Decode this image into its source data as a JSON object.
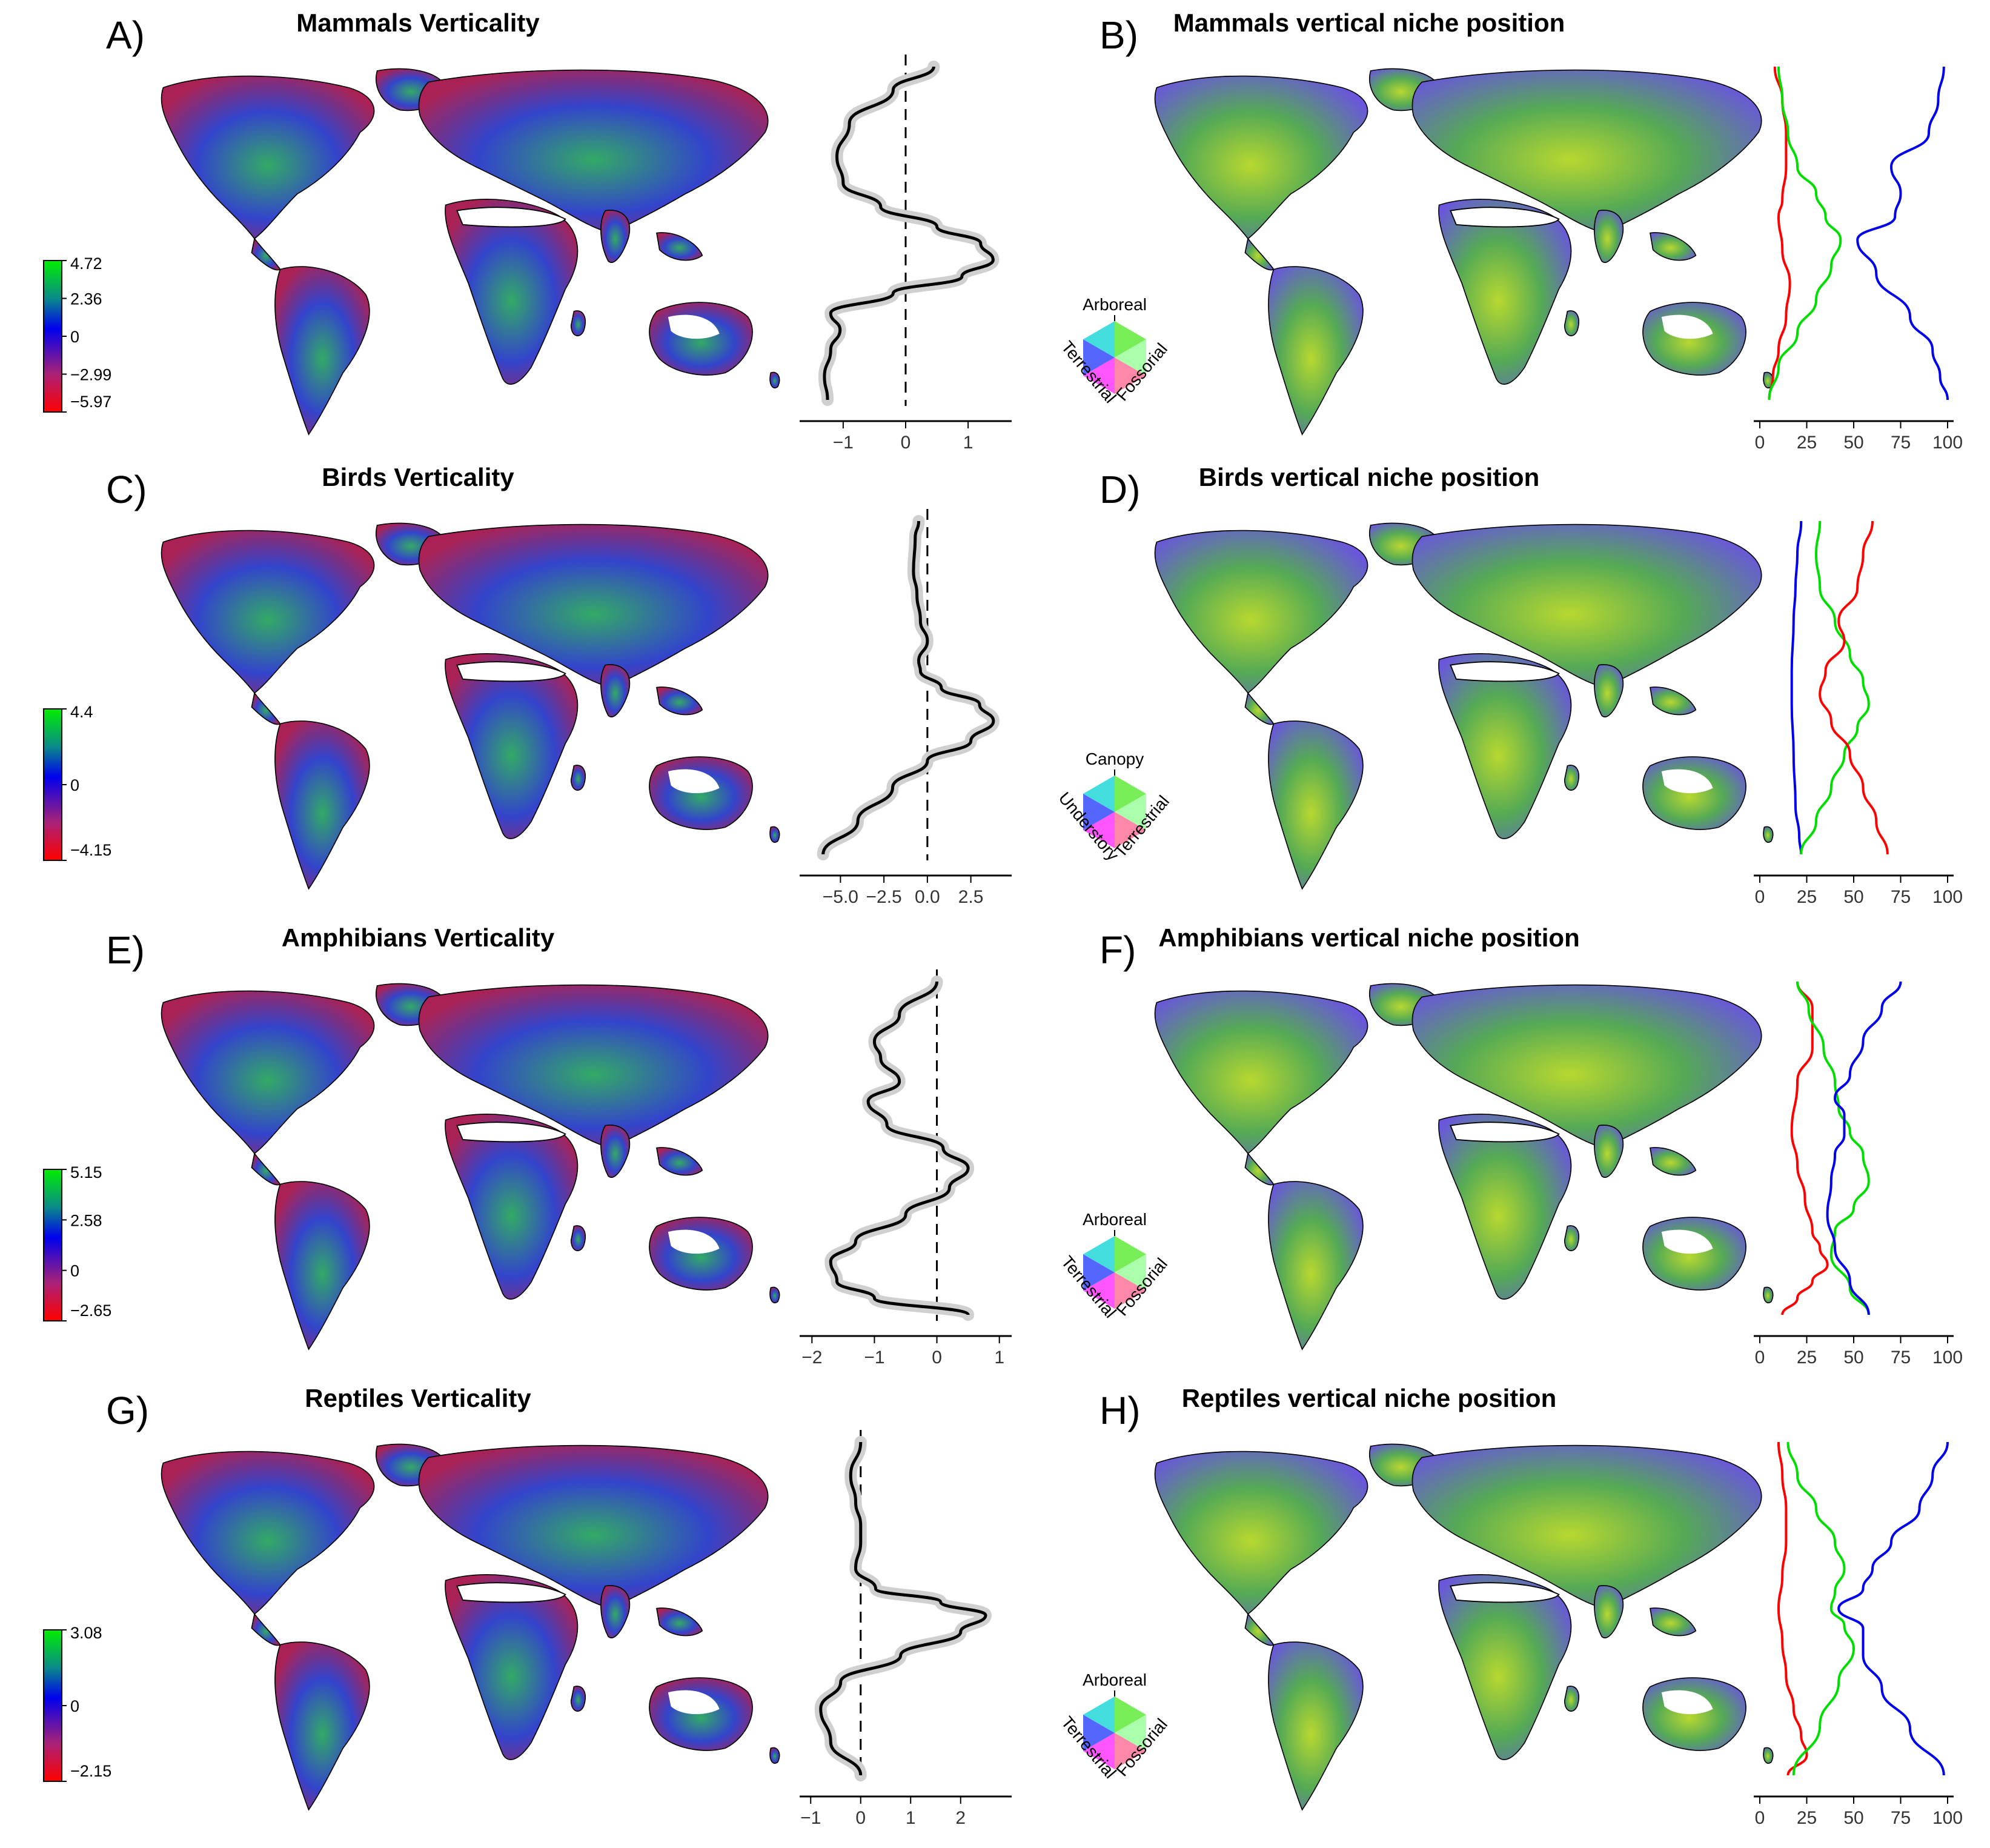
{
  "colors": {
    "red": "#ff0000",
    "green": "#00dd00",
    "blue": "#0000ee",
    "grey": "#d0d0d0",
    "black": "#000000"
  },
  "panels": [
    {
      "label": "A)",
      "title": "Mammals Verticality",
      "kind": "map-verticality",
      "colorbar": {
        "ticks": [
          "4.72",
          "2.36",
          "0",
          "−2.99",
          "−5.97"
        ]
      }
    },
    {
      "label": "B)",
      "title": "Mammals vertical niche position",
      "kind": "map-ternary",
      "ternary": {
        "top": "Arboreal",
        "left": "Terrestrial",
        "right": "Fossorial"
      }
    },
    {
      "label": "C)",
      "title": "Birds Verticality",
      "kind": "map-verticality",
      "colorbar": {
        "ticks": [
          "4.4",
          "0",
          "−4.15"
        ]
      }
    },
    {
      "label": "D)",
      "title": "Birds vertical niche position",
      "kind": "map-ternary",
      "ternary": {
        "top": "Canopy",
        "left": "Understory",
        "right": "Terrestrial"
      }
    },
    {
      "label": "E)",
      "title": "Amphibians Verticality",
      "kind": "map-verticality",
      "colorbar": {
        "ticks": [
          "5.15",
          "2.58",
          "0",
          "−2.65"
        ]
      }
    },
    {
      "label": "F)",
      "title": "Amphibians vertical niche position",
      "kind": "map-ternary",
      "ternary": {
        "top": "Arboreal",
        "left": "Terrestrial",
        "right": "Fossorial"
      }
    },
    {
      "label": "G)",
      "title": "Reptiles Verticality",
      "kind": "map-verticality",
      "colorbar": {
        "ticks": [
          "3.08",
          "0",
          "−2.15"
        ]
      }
    },
    {
      "label": "H)",
      "title": "Reptiles vertical niche position",
      "kind": "map-ternary",
      "ternary": {
        "top": "Arboreal",
        "left": "Terrestrial",
        "right": "Fossorial"
      }
    }
  ],
  "chart_data": [
    {
      "panel": "A",
      "type": "line",
      "xlim": [
        -1.6,
        1.6
      ],
      "ticks": [
        "−1",
        "0",
        "1"
      ],
      "tickvals": [
        -1,
        0,
        1
      ],
      "ref": 0,
      "series": [
        {
          "color": "black",
          "band": true,
          "x": [
            0.45,
            -0.2,
            -0.9,
            -1.1,
            -1.0,
            -0.4,
            0.5,
            1.2,
            1.4,
            0.9,
            -0.2,
            -1.2,
            -1.05,
            -1.2,
            -1.3,
            -1.25
          ],
          "y": [
            0,
            0.07,
            0.17,
            0.27,
            0.35,
            0.42,
            0.48,
            0.53,
            0.58,
            0.63,
            0.68,
            0.74,
            0.79,
            0.85,
            0.93,
            1
          ]
        }
      ]
    },
    {
      "panel": "B",
      "type": "line",
      "xlim": [
        0,
        100
      ],
      "ticks": [
        "0",
        "25",
        "50",
        "75",
        "100"
      ],
      "tickvals": [
        0,
        25,
        50,
        75,
        100
      ],
      "series": [
        {
          "color": "red",
          "x": [
            8,
            12,
            14,
            14,
            12,
            10,
            12,
            16,
            14,
            10,
            7,
            5
          ],
          "y": [
            0,
            0.1,
            0.2,
            0.3,
            0.4,
            0.45,
            0.55,
            0.65,
            0.75,
            0.85,
            0.93,
            1
          ]
        },
        {
          "color": "green",
          "x": [
            10,
            12,
            15,
            20,
            30,
            35,
            43,
            38,
            30,
            20,
            10,
            5
          ],
          "y": [
            0,
            0.1,
            0.2,
            0.3,
            0.38,
            0.45,
            0.52,
            0.6,
            0.7,
            0.8,
            0.9,
            1
          ]
        },
        {
          "color": "blue",
          "x": [
            98,
            95,
            90,
            70,
            75,
            72,
            52,
            62,
            80,
            92,
            96,
            100
          ],
          "y": [
            0,
            0.1,
            0.2,
            0.3,
            0.38,
            0.45,
            0.52,
            0.62,
            0.75,
            0.85,
            0.93,
            1
          ]
        }
      ]
    },
    {
      "panel": "C",
      "type": "line",
      "xlim": [
        -7,
        4.5
      ],
      "ticks": [
        "−5.0",
        "−2.5",
        "0.0",
        "2.5"
      ],
      "tickvals": [
        -5,
        -2.5,
        0,
        2.5
      ],
      "ref": 0,
      "series": [
        {
          "color": "black",
          "band": true,
          "x": [
            -0.5,
            -0.7,
            -0.8,
            -0.6,
            -0.4,
            0.0,
            -0.5,
            -0.4,
            0.8,
            3.0,
            3.8,
            2.5,
            0.0,
            -2.0,
            -4.0,
            -6.0
          ],
          "y": [
            0,
            0.05,
            0.15,
            0.22,
            0.3,
            0.36,
            0.42,
            0.45,
            0.5,
            0.55,
            0.6,
            0.66,
            0.72,
            0.8,
            0.9,
            1
          ]
        }
      ]
    },
    {
      "panel": "D",
      "type": "line",
      "xlim": [
        0,
        100
      ],
      "ticks": [
        "0",
        "25",
        "50",
        "75",
        "100"
      ],
      "tickvals": [
        0,
        25,
        50,
        75,
        100
      ],
      "series": [
        {
          "color": "blue",
          "x": [
            22,
            20,
            19,
            18,
            17,
            17,
            18,
            19,
            21,
            22
          ],
          "y": [
            0,
            0.1,
            0.2,
            0.3,
            0.45,
            0.55,
            0.7,
            0.85,
            0.95,
            1
          ]
        },
        {
          "color": "green",
          "x": [
            32,
            30,
            32,
            40,
            48,
            55,
            58,
            52,
            45,
            38,
            30,
            22
          ],
          "y": [
            0,
            0.1,
            0.2,
            0.3,
            0.4,
            0.48,
            0.55,
            0.62,
            0.7,
            0.8,
            0.9,
            1
          ]
        },
        {
          "color": "red",
          "x": [
            60,
            55,
            52,
            42,
            45,
            35,
            32,
            38,
            48,
            55,
            62,
            68
          ],
          "y": [
            0,
            0.1,
            0.2,
            0.3,
            0.36,
            0.45,
            0.52,
            0.6,
            0.7,
            0.8,
            0.9,
            1
          ]
        }
      ]
    },
    {
      "panel": "E",
      "type": "line",
      "xlim": [
        -2.1,
        1.1
      ],
      "ticks": [
        "−2",
        "−1",
        "0",
        "1"
      ],
      "tickvals": [
        -2,
        -1,
        0,
        1
      ],
      "ref": 0,
      "series": [
        {
          "color": "black",
          "band": true,
          "x": [
            0.0,
            -0.6,
            -1.0,
            -0.9,
            -0.6,
            -1.1,
            -0.8,
            0.1,
            0.5,
            0.2,
            -0.5,
            -1.3,
            -1.7,
            -1.6,
            -1.0,
            0.5
          ],
          "y": [
            0,
            0.1,
            0.18,
            0.23,
            0.3,
            0.36,
            0.43,
            0.5,
            0.56,
            0.62,
            0.7,
            0.78,
            0.84,
            0.9,
            0.95,
            1
          ]
        }
      ]
    },
    {
      "panel": "F",
      "type": "line",
      "xlim": [
        0,
        100
      ],
      "ticks": [
        "0",
        "25",
        "50",
        "75",
        "100"
      ],
      "tickvals": [
        0,
        25,
        50,
        75,
        100
      ],
      "series": [
        {
          "color": "red",
          "x": [
            20,
            28,
            28,
            20,
            17,
            20,
            24,
            28,
            32,
            36,
            28,
            20,
            12
          ],
          "y": [
            0,
            0.08,
            0.2,
            0.3,
            0.45,
            0.55,
            0.65,
            0.75,
            0.8,
            0.85,
            0.9,
            0.95,
            1
          ]
        },
        {
          "color": "green",
          "x": [
            20,
            26,
            34,
            40,
            42,
            48,
            55,
            58,
            50,
            40,
            38,
            48,
            58
          ],
          "y": [
            0,
            0.08,
            0.2,
            0.3,
            0.38,
            0.45,
            0.52,
            0.6,
            0.68,
            0.75,
            0.82,
            0.92,
            1
          ]
        },
        {
          "color": "blue",
          "x": [
            75,
            65,
            55,
            48,
            40,
            45,
            45,
            40,
            38,
            36,
            40,
            48,
            58
          ],
          "y": [
            0,
            0.08,
            0.18,
            0.28,
            0.35,
            0.4,
            0.46,
            0.52,
            0.6,
            0.7,
            0.8,
            0.9,
            1
          ]
        }
      ]
    },
    {
      "panel": "G",
      "type": "line",
      "xlim": [
        -1.1,
        2.9
      ],
      "ticks": [
        "−1",
        "0",
        "1",
        "2"
      ],
      "tickvals": [
        -1,
        0,
        1,
        2
      ],
      "ref": 0,
      "series": [
        {
          "color": "black",
          "band": true,
          "x": [
            0.0,
            -0.2,
            -0.1,
            0.0,
            0.0,
            -0.1,
            0.3,
            1.6,
            2.5,
            2.0,
            0.8,
            -0.4,
            -0.8,
            -0.6,
            0.0
          ],
          "y": [
            0,
            0.1,
            0.18,
            0.25,
            0.3,
            0.38,
            0.44,
            0.48,
            0.52,
            0.57,
            0.64,
            0.72,
            0.8,
            0.9,
            1
          ]
        }
      ]
    },
    {
      "panel": "H",
      "type": "line",
      "xlim": [
        0,
        100
      ],
      "ticks": [
        "0",
        "25",
        "50",
        "75",
        "100"
      ],
      "tickvals": [
        0,
        25,
        50,
        75,
        100
      ],
      "series": [
        {
          "color": "red",
          "x": [
            10,
            12,
            14,
            14,
            12,
            10,
            12,
            14,
            18,
            22,
            25,
            15
          ],
          "y": [
            0,
            0.1,
            0.2,
            0.3,
            0.4,
            0.5,
            0.6,
            0.7,
            0.8,
            0.88,
            0.94,
            1
          ]
        },
        {
          "color": "green",
          "x": [
            15,
            20,
            30,
            40,
            45,
            40,
            38,
            45,
            50,
            42,
            32,
            18
          ],
          "y": [
            0,
            0.1,
            0.2,
            0.3,
            0.38,
            0.45,
            0.5,
            0.55,
            0.62,
            0.72,
            0.85,
            1
          ]
        },
        {
          "color": "blue",
          "x": [
            100,
            92,
            85,
            70,
            60,
            55,
            42,
            55,
            55,
            65,
            80,
            98
          ],
          "y": [
            0,
            0.1,
            0.2,
            0.3,
            0.38,
            0.44,
            0.5,
            0.56,
            0.64,
            0.74,
            0.86,
            1
          ]
        }
      ]
    }
  ]
}
